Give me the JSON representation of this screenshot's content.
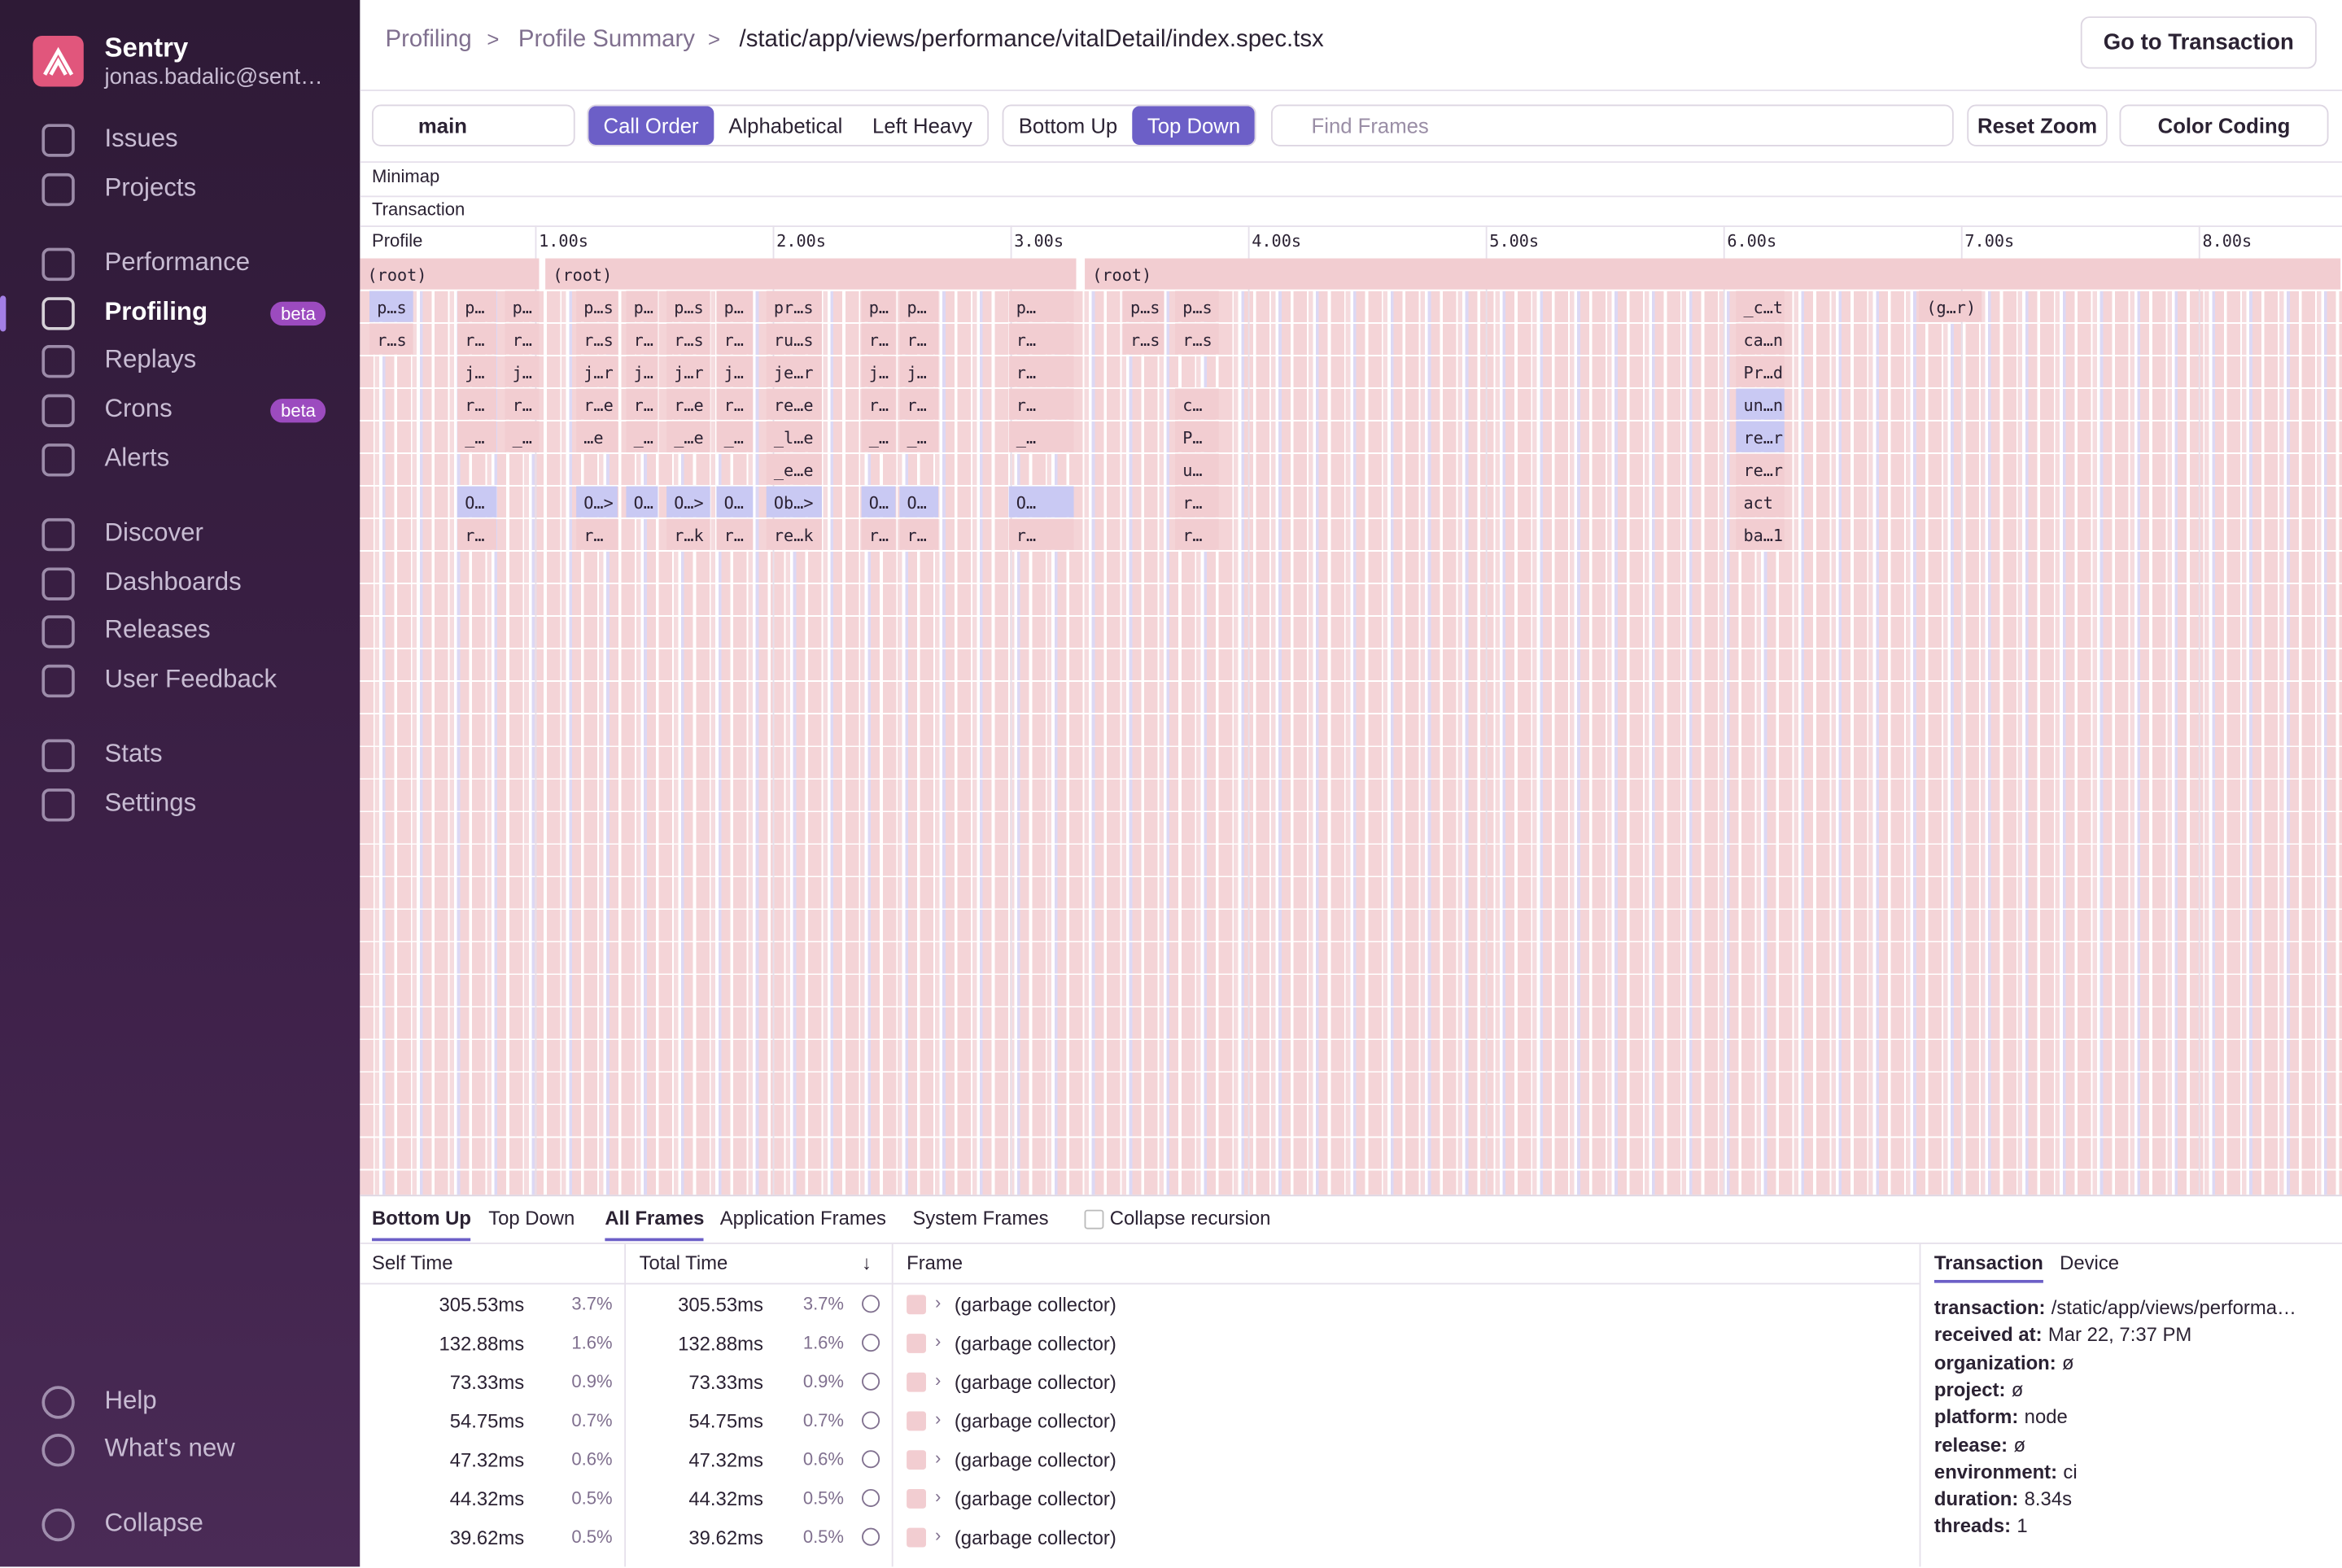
{
  "sidebar": {
    "org": "Sentry",
    "user": "jonas.badalic@sent…",
    "nav": [
      {
        "label": "Issues"
      },
      {
        "label": "Projects"
      },
      {
        "label": "Performance"
      },
      {
        "label": "Profiling",
        "badge": "beta"
      },
      {
        "label": "Replays"
      },
      {
        "label": "Crons",
        "badge": "beta"
      },
      {
        "label": "Alerts"
      },
      {
        "label": "Discover"
      },
      {
        "label": "Dashboards"
      },
      {
        "label": "Releases"
      },
      {
        "label": "User Feedback"
      },
      {
        "label": "Stats"
      },
      {
        "label": "Settings"
      }
    ],
    "footer": [
      "Help",
      "What's new",
      "Collapse"
    ]
  },
  "header": {
    "breadcrumbs": [
      "Profiling",
      "Profile Summary",
      "/static/app/views/performance/vitalDetail/index.spec.tsx"
    ],
    "button": "Go to Transaction"
  },
  "toolbar": {
    "thread": "main",
    "order_buttons": [
      "Call Order",
      "Alphabetical",
      "Left Heavy"
    ],
    "view_buttons": [
      "Bottom Up",
      "Top Down"
    ],
    "search_placeholder": "Find Frames",
    "reset": "Reset Zoom",
    "color_coding": "Color Coding"
  },
  "sections": [
    "Minimap",
    "Transaction"
  ],
  "flamegraph": {
    "axis_label": "Profile",
    "xlim": [
      0.26,
      8.6
    ],
    "xticks": [
      {
        "value": 1,
        "label": "1.00s"
      },
      {
        "value": 2,
        "label": "2.00s"
      },
      {
        "value": 3,
        "label": "3.00s"
      },
      {
        "value": 4,
        "label": "4.00s"
      },
      {
        "value": 5,
        "label": "5.00s"
      },
      {
        "value": 6,
        "label": "6.00s"
      },
      {
        "value": 7,
        "label": "7.00s"
      },
      {
        "value": 8,
        "label": "8.00s"
      }
    ],
    "rows": [
      [
        {
          "label": "(root)",
          "start": 0.26,
          "end": 1.02,
          "color": "#f2cdd1"
        },
        {
          "label": "(root)",
          "start": 1.04,
          "end": 3.28,
          "color": "#f2cdd1"
        },
        {
          "label": "(root)",
          "start": 3.31,
          "end": 8.6,
          "color": "#f2cdd1"
        }
      ],
      [
        {
          "label": "p…s",
          "start": 0.3,
          "end": 0.49,
          "color": "#c9c9f3"
        },
        {
          "label": "p…",
          "start": 0.67,
          "end": 0.84,
          "color": "#f2cdd1"
        },
        {
          "label": "p…",
          "start": 0.87,
          "end": 1.02,
          "color": "#f2cdd1"
        },
        {
          "label": "p…s",
          "start": 1.17,
          "end": 1.35,
          "color": "#f2cdd1"
        },
        {
          "label": "p…",
          "start": 1.38,
          "end": 1.52,
          "color": "#f2cdd1"
        },
        {
          "label": "p…s",
          "start": 1.55,
          "end": 1.74,
          "color": "#f2cdd1"
        },
        {
          "label": "p…",
          "start": 1.76,
          "end": 1.92,
          "color": "#f2cdd1"
        },
        {
          "label": "pr…s",
          "start": 1.97,
          "end": 2.21,
          "color": "#f2cdd1"
        },
        {
          "label": "p…",
          "start": 2.37,
          "end": 2.52,
          "color": "#f2cdd1"
        },
        {
          "label": "p…",
          "start": 2.53,
          "end": 2.7,
          "color": "#f2cdd1"
        },
        {
          "label": "p…",
          "start": 2.99,
          "end": 3.27,
          "color": "#f2cdd1"
        },
        {
          "label": "p…s",
          "start": 3.47,
          "end": 3.65,
          "color": "#f2cdd1"
        },
        {
          "label": "p…s",
          "start": 3.69,
          "end": 3.88,
          "color": "#f2cdd1"
        },
        {
          "label": "_c…t",
          "start": 6.05,
          "end": 6.26,
          "color": "#f2cdd1"
        },
        {
          "label": "(g…r)",
          "start": 6.82,
          "end": 7.09,
          "color": "#f2cdd1"
        }
      ],
      [
        {
          "label": "r…s",
          "start": 0.3,
          "end": 0.49,
          "color": "#f2cdd1"
        },
        {
          "label": "r…",
          "start": 0.67,
          "end": 0.84,
          "color": "#f2cdd1"
        },
        {
          "label": "r…",
          "start": 0.87,
          "end": 1.02,
          "color": "#f2cdd1"
        },
        {
          "label": "r…s",
          "start": 1.17,
          "end": 1.35,
          "color": "#f2cdd1"
        },
        {
          "label": "r…",
          "start": 1.38,
          "end": 1.52,
          "color": "#f2cdd1"
        },
        {
          "label": "r…s",
          "start": 1.55,
          "end": 1.74,
          "color": "#f2cdd1"
        },
        {
          "label": "r…",
          "start": 1.76,
          "end": 1.92,
          "color": "#f2cdd1"
        },
        {
          "label": "ru…s",
          "start": 1.97,
          "end": 2.21,
          "color": "#f2cdd1"
        },
        {
          "label": "r…",
          "start": 2.37,
          "end": 2.52,
          "color": "#f2cdd1"
        },
        {
          "label": "r…",
          "start": 2.53,
          "end": 2.7,
          "color": "#f2cdd1"
        },
        {
          "label": "r…",
          "start": 2.99,
          "end": 3.27,
          "color": "#f2cdd1"
        },
        {
          "label": "r…s",
          "start": 3.47,
          "end": 3.65,
          "color": "#f2cdd1"
        },
        {
          "label": "r…s",
          "start": 3.69,
          "end": 3.88,
          "color": "#f2cdd1"
        },
        {
          "label": "ca…n",
          "start": 6.05,
          "end": 6.26,
          "color": "#f2cdd1"
        }
      ],
      [
        {
          "label": "j…",
          "start": 0.67,
          "end": 0.84,
          "color": "#f2cdd1"
        },
        {
          "label": "j…",
          "start": 0.87,
          "end": 1.02,
          "color": "#f2cdd1"
        },
        {
          "label": "j…r",
          "start": 1.17,
          "end": 1.35,
          "color": "#f2cdd1"
        },
        {
          "label": "j…",
          "start": 1.38,
          "end": 1.52,
          "color": "#f2cdd1"
        },
        {
          "label": "j…r",
          "start": 1.55,
          "end": 1.74,
          "color": "#f2cdd1"
        },
        {
          "label": "j…",
          "start": 1.76,
          "end": 1.92,
          "color": "#f2cdd1"
        },
        {
          "label": "je…r",
          "start": 1.97,
          "end": 2.21,
          "color": "#f2cdd1"
        },
        {
          "label": "j…",
          "start": 2.37,
          "end": 2.52,
          "color": "#f2cdd1"
        },
        {
          "label": "j…",
          "start": 2.53,
          "end": 2.7,
          "color": "#f2cdd1"
        },
        {
          "label": "r…",
          "start": 2.99,
          "end": 3.27,
          "color": "#f2cdd1"
        },
        {
          "label": "Pr…d",
          "start": 6.05,
          "end": 6.26,
          "color": "#f2cdd1"
        }
      ],
      [
        {
          "label": "r…",
          "start": 0.67,
          "end": 0.84,
          "color": "#f2cdd1"
        },
        {
          "label": "r…",
          "start": 0.87,
          "end": 1.02,
          "color": "#f2cdd1"
        },
        {
          "label": "r…e",
          "start": 1.17,
          "end": 1.35,
          "color": "#f2cdd1"
        },
        {
          "label": "r…",
          "start": 1.38,
          "end": 1.52,
          "color": "#f2cdd1"
        },
        {
          "label": "r…e",
          "start": 1.55,
          "end": 1.74,
          "color": "#f2cdd1"
        },
        {
          "label": "r…",
          "start": 1.76,
          "end": 1.92,
          "color": "#f2cdd1"
        },
        {
          "label": "re…e",
          "start": 1.97,
          "end": 2.21,
          "color": "#f2cdd1"
        },
        {
          "label": "r…",
          "start": 2.37,
          "end": 2.52,
          "color": "#f2cdd1"
        },
        {
          "label": "r…",
          "start": 2.53,
          "end": 2.7,
          "color": "#f2cdd1"
        },
        {
          "label": "r…",
          "start": 2.99,
          "end": 3.27,
          "color": "#f2cdd1"
        },
        {
          "label": "c…",
          "start": 3.69,
          "end": 3.88,
          "color": "#f2cdd1"
        },
        {
          "label": "un…n",
          "start": 6.05,
          "end": 6.26,
          "color": "#c9c9f3"
        }
      ],
      [
        {
          "label": "_…",
          "start": 0.67,
          "end": 0.84,
          "color": "#f2cdd1"
        },
        {
          "label": "_…",
          "start": 0.87,
          "end": 1.02,
          "color": "#f2cdd1"
        },
        {
          "label": "…e",
          "start": 1.17,
          "end": 1.35,
          "color": "#f2cdd1"
        },
        {
          "label": "_…",
          "start": 1.38,
          "end": 1.52,
          "color": "#f2cdd1"
        },
        {
          "label": "_…e",
          "start": 1.55,
          "end": 1.74,
          "color": "#f2cdd1"
        },
        {
          "label": "_…",
          "start": 1.76,
          "end": 1.92,
          "color": "#f2cdd1"
        },
        {
          "label": "_l…e",
          "start": 1.97,
          "end": 2.21,
          "color": "#f2cdd1"
        },
        {
          "label": "_…",
          "start": 2.37,
          "end": 2.52,
          "color": "#f2cdd1"
        },
        {
          "label": "_…",
          "start": 2.53,
          "end": 2.7,
          "color": "#f2cdd1"
        },
        {
          "label": "_…",
          "start": 2.99,
          "end": 3.27,
          "color": "#f2cdd1"
        },
        {
          "label": "P…",
          "start": 3.69,
          "end": 3.88,
          "color": "#f2cdd1"
        },
        {
          "label": "re…r",
          "start": 6.05,
          "end": 6.26,
          "color": "#c9c9f3"
        }
      ],
      [
        {
          "label": "_e…e",
          "start": 1.97,
          "end": 2.21,
          "color": "#f2cdd1"
        },
        {
          "label": "u…",
          "start": 3.69,
          "end": 3.88,
          "color": "#f2cdd1"
        },
        {
          "label": "re…r",
          "start": 6.05,
          "end": 6.26,
          "color": "#f2cdd1"
        }
      ],
      [
        {
          "label": "O…",
          "start": 0.67,
          "end": 0.84,
          "color": "#c9c9f3"
        },
        {
          "label": "O…>",
          "start": 1.17,
          "end": 1.35,
          "color": "#c9c9f3"
        },
        {
          "label": "O…",
          "start": 1.38,
          "end": 1.52,
          "color": "#c9c9f3"
        },
        {
          "label": "O…>",
          "start": 1.55,
          "end": 1.74,
          "color": "#c9c9f3"
        },
        {
          "label": "O…",
          "start": 1.76,
          "end": 1.92,
          "color": "#c9c9f3"
        },
        {
          "label": "Ob…>",
          "start": 1.97,
          "end": 2.21,
          "color": "#c9c9f3"
        },
        {
          "label": "O…",
          "start": 2.37,
          "end": 2.52,
          "color": "#c9c9f3"
        },
        {
          "label": "O…",
          "start": 2.53,
          "end": 2.7,
          "color": "#c9c9f3"
        },
        {
          "label": "O…",
          "start": 2.99,
          "end": 3.27,
          "color": "#c9c9f3"
        },
        {
          "label": "r…",
          "start": 3.69,
          "end": 3.88,
          "color": "#f2cdd1"
        },
        {
          "label": "act",
          "start": 6.05,
          "end": 6.26,
          "color": "#f2cdd1"
        }
      ],
      [
        {
          "label": "r…",
          "start": 0.67,
          "end": 0.84,
          "color": "#f2cdd1"
        },
        {
          "label": "r…",
          "start": 1.17,
          "end": 1.35,
          "color": "#f2cdd1"
        },
        {
          "label": "r…k",
          "start": 1.55,
          "end": 1.74,
          "color": "#f2cdd1"
        },
        {
          "label": "r…",
          "start": 1.76,
          "end": 1.92,
          "color": "#f2cdd1"
        },
        {
          "label": "re…k",
          "start": 1.97,
          "end": 2.21,
          "color": "#f2cdd1"
        },
        {
          "label": "r…",
          "start": 2.37,
          "end": 2.52,
          "color": "#f2cdd1"
        },
        {
          "label": "r…",
          "start": 2.53,
          "end": 2.7,
          "color": "#f2cdd1"
        },
        {
          "label": "r…",
          "start": 2.99,
          "end": 3.27,
          "color": "#f2cdd1"
        },
        {
          "label": "r…",
          "start": 3.69,
          "end": 3.88,
          "color": "#f2cdd1"
        },
        {
          "label": "ba…1",
          "start": 6.05,
          "end": 6.26,
          "color": "#f2cdd1"
        }
      ]
    ]
  },
  "bottom": {
    "tabs": [
      "Bottom Up",
      "Top Down"
    ],
    "filters": [
      "All Frames",
      "Application Frames",
      "System Frames"
    ],
    "checkbox": "Collapse recursion",
    "columns": [
      "Self Time",
      "Total Time",
      "Frame"
    ],
    "rows": [
      [
        "305.53ms",
        "3.7%",
        "305.53ms",
        "3.7%",
        "(garbage collector)"
      ],
      [
        "132.88ms",
        "1.6%",
        "132.88ms",
        "1.6%",
        "(garbage collector)"
      ],
      [
        "73.33ms",
        "0.9%",
        "73.33ms",
        "0.9%",
        "(garbage collector)"
      ],
      [
        "54.75ms",
        "0.7%",
        "54.75ms",
        "0.7%",
        "(garbage collector)"
      ],
      [
        "47.32ms",
        "0.6%",
        "47.32ms",
        "0.6%",
        "(garbage collector)"
      ],
      [
        "44.32ms",
        "0.5%",
        "44.32ms",
        "0.5%",
        "(garbage collector)"
      ],
      [
        "39.62ms",
        "0.5%",
        "39.62ms",
        "0.5%",
        "(garbage collector)"
      ]
    ],
    "details_tabs": [
      "Transaction",
      "Device"
    ],
    "details": [
      [
        "transaction:",
        "/static/app/views/performa…"
      ],
      [
        "received at:",
        "Mar 22, 7:37 PM"
      ],
      [
        "organization:",
        "ø"
      ],
      [
        "project:",
        "ø"
      ],
      [
        "platform:",
        "node"
      ],
      [
        "release:",
        "ø"
      ],
      [
        "environment:",
        "ci"
      ],
      [
        "duration:",
        "8.34s"
      ],
      [
        "threads:",
        "1"
      ]
    ]
  }
}
